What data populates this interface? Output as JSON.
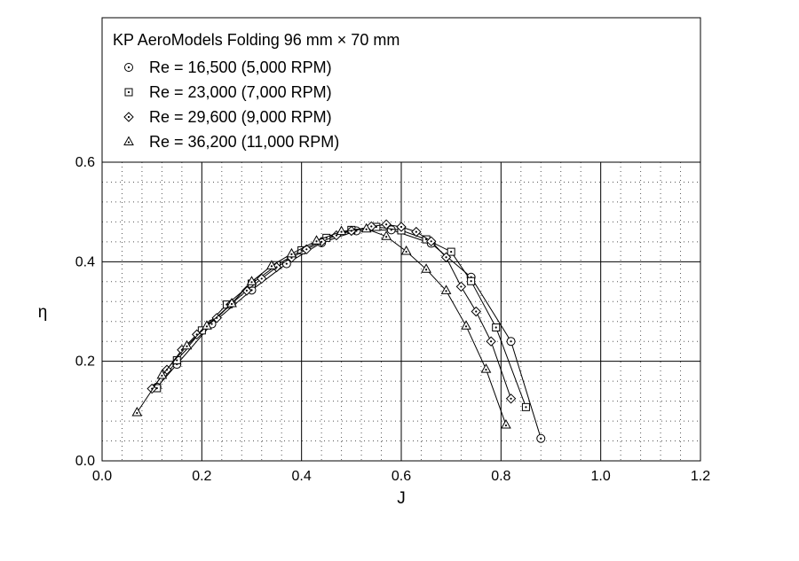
{
  "chart_data": {
    "type": "line",
    "title": "KP AeroModels Folding 96 mm × 70 mm",
    "xlabel": "J",
    "ylabel": "η",
    "xlim": [
      0.0,
      1.2
    ],
    "ylim": [
      0.0,
      0.6
    ],
    "x_ticks": [
      "0.0",
      "0.2",
      "0.4",
      "0.6",
      "0.8",
      "1.0",
      "1.2"
    ],
    "y_ticks": [
      "0.0",
      "0.2",
      "0.4",
      "0.6"
    ],
    "grid": "major solid, minor dotted",
    "legend_position": "top-left",
    "series": [
      {
        "name": "Re = 16,500 (5,000 RPM)",
        "marker": "circle-dot",
        "x": [
          0.11,
          0.15,
          0.22,
          0.3,
          0.37,
          0.44,
          0.51,
          0.58,
          0.66,
          0.74,
          0.82,
          0.88
        ],
        "y": [
          0.148,
          0.194,
          0.275,
          0.343,
          0.396,
          0.438,
          0.462,
          0.464,
          0.437,
          0.369,
          0.24,
          0.045
        ]
      },
      {
        "name": "Re = 23,000 (7,000 RPM)",
        "marker": "square-dot",
        "x": [
          0.11,
          0.15,
          0.2,
          0.25,
          0.3,
          0.35,
          0.4,
          0.45,
          0.5,
          0.55,
          0.6,
          0.65,
          0.7,
          0.74,
          0.79,
          0.85
        ],
        "y": [
          0.146,
          0.202,
          0.262,
          0.314,
          0.356,
          0.393,
          0.423,
          0.448,
          0.464,
          0.47,
          0.463,
          0.445,
          0.42,
          0.361,
          0.268,
          0.108
        ]
      },
      {
        "name": "Re = 29,600 (9,000 RPM)",
        "marker": "diamond-dot",
        "x": [
          0.1,
          0.13,
          0.16,
          0.19,
          0.23,
          0.26,
          0.29,
          0.32,
          0.35,
          0.38,
          0.41,
          0.44,
          0.47,
          0.5,
          0.54,
          0.57,
          0.6,
          0.63,
          0.66,
          0.69,
          0.72,
          0.75,
          0.78,
          0.82
        ],
        "y": [
          0.145,
          0.183,
          0.223,
          0.254,
          0.287,
          0.316,
          0.342,
          0.366,
          0.389,
          0.408,
          0.425,
          0.44,
          0.453,
          0.462,
          0.471,
          0.475,
          0.47,
          0.46,
          0.441,
          0.409,
          0.35,
          0.3,
          0.24,
          0.125
        ]
      },
      {
        "name": "Re = 36,200 (11,000 RPM)",
        "marker": "triangle-dot",
        "x": [
          0.07,
          0.12,
          0.17,
          0.21,
          0.26,
          0.3,
          0.34,
          0.38,
          0.43,
          0.48,
          0.53,
          0.57,
          0.61,
          0.65,
          0.69,
          0.73,
          0.77,
          0.81
        ],
        "y": [
          0.097,
          0.172,
          0.231,
          0.271,
          0.316,
          0.36,
          0.392,
          0.416,
          0.442,
          0.461,
          0.466,
          0.451,
          0.421,
          0.385,
          0.342,
          0.271,
          0.184,
          0.072
        ]
      }
    ]
  }
}
